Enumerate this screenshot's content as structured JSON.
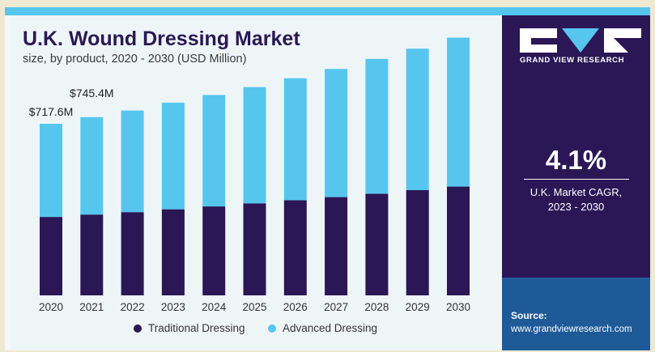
{
  "chart_data": {
    "type": "bar",
    "stacked": true,
    "title": "U.K. Wound Dressing Market",
    "subtitle": "size, by product, 2020 - 2030 (USD Million)",
    "categories": [
      "2020",
      "2021",
      "2022",
      "2023",
      "2024",
      "2025",
      "2026",
      "2027",
      "2028",
      "2029",
      "2030"
    ],
    "series": [
      {
        "name": "Traditional Dressing",
        "color": "#2b1656",
        "values": [
          328,
          338,
          348,
          360,
          372,
          385,
          398,
          411,
          425,
          440,
          455
        ]
      },
      {
        "name": "Advanced Dressing",
        "color": "#56c6ef",
        "values": [
          389.6,
          407.4,
          425,
          446,
          466,
          486,
          510,
          536,
          564,
          592,
          623
        ]
      }
    ],
    "annotations": [
      {
        "category": "2020",
        "label": "$717.6M"
      },
      {
        "category": "2021",
        "label": "$745.4M"
      }
    ],
    "ylim": [
      0,
      1100
    ],
    "grid": false,
    "legend_position": "bottom"
  },
  "sidebar": {
    "logo_text": "GRAND VIEW RESEARCH",
    "cagr_value": "4.1%",
    "cagr_label_line1": "U.K. Market CAGR,",
    "cagr_label_line2": "2023 - 2030",
    "source_label": "Source:",
    "source_url": "www.grandviewresearch.com"
  }
}
